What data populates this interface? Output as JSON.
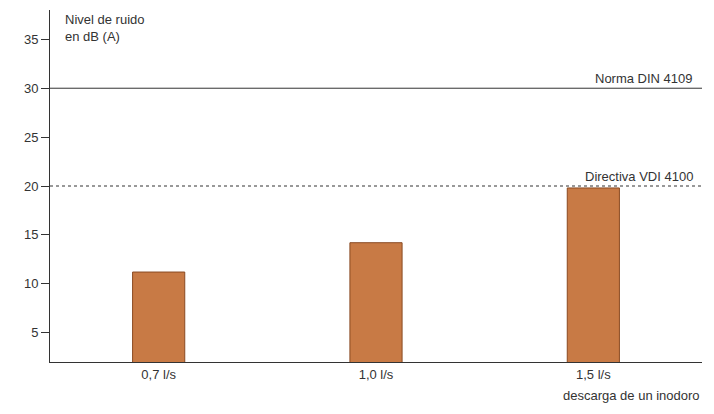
{
  "chart_data": {
    "type": "bar",
    "y_label": "Nivel de ruido en dB (A)",
    "x_label": "descarga de un inodoro",
    "categories": [
      "0,7 l/s",
      "1,0 l/s",
      "1,5 l/s"
    ],
    "values": [
      11.2,
      14.2,
      19.8
    ],
    "color": "#c87a45",
    "ylim": [
      2,
      38
    ],
    "yticks": [
      5,
      10,
      15,
      20,
      25,
      30,
      35
    ],
    "grid": false,
    "reference_lines": [
      {
        "value": 30,
        "label": "Norma DIN 4109",
        "line_style": "solid"
      },
      {
        "value": 20,
        "label": "Directiva VDI 4100",
        "line_style": "dot"
      }
    ]
  }
}
